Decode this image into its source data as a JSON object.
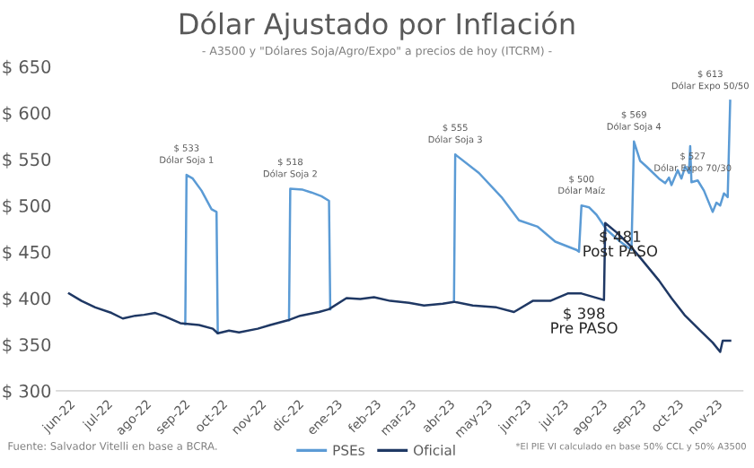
{
  "chart_data": {
    "type": "line",
    "title": "Dólar Ajustado por Inflación",
    "subtitle": "- A3500 y \"Dólares Soja/Agro/Expo\" a precios de hoy (ITCRM) -",
    "series": [
      {
        "name": "PSEs",
        "color": "#5b9bd5",
        "x": [
          "2022-09-02",
          "2022-09-03",
          "2022-09-08",
          "2022-09-15",
          "2022-09-23",
          "2022-09-27",
          "2022-09-28",
          "2022-10-15",
          "2022-11-24",
          "2022-11-25",
          "2022-12-05",
          "2022-12-12",
          "2022-12-20",
          "2022-12-26",
          "2022-12-27",
          "2023-02-01",
          "2023-04-05",
          "2023-04-06",
          "2023-04-25",
          "2023-05-13",
          "2023-05-27",
          "2023-06-11",
          "2023-06-25",
          "2023-07-12",
          "2023-07-14",
          "2023-07-16",
          "2023-07-22",
          "2023-07-28",
          "2023-08-05",
          "2023-08-16",
          "2023-08-25",
          "2023-08-27",
          "2023-09-01",
          "2023-09-06",
          "2023-09-16",
          "2023-09-21",
          "2023-09-24",
          "2023-09-26",
          "2023-10-01",
          "2023-10-04",
          "2023-10-07",
          "2023-10-10",
          "2023-10-11",
          "2023-10-12",
          "2023-10-17",
          "2023-10-22",
          "2023-10-29",
          "2023-11-01",
          "2023-11-04",
          "2023-11-07",
          "2023-11-10",
          "2023-11-12"
        ],
        "values": [
          372,
          533,
          529,
          516,
          496,
          493,
          362,
          null,
          376,
          518,
          517,
          514,
          510,
          505,
          388,
          null,
          396,
          555,
          535,
          509,
          484,
          477,
          461,
          452,
          450,
          500,
          498,
          490,
          474,
          461,
          452,
          569,
          548,
          542,
          529,
          524,
          530,
          522,
          538,
          529,
          542,
          535,
          564,
          525,
          527,
          516,
          493,
          503,
          500,
          513,
          509,
          613
        ]
      },
      {
        "name": "Oficial",
        "color": "#1f3864",
        "x": [
          "2022-06-01",
          "2022-06-11",
          "2022-06-22",
          "2022-07-05",
          "2022-07-14",
          "2022-07-24",
          "2022-07-31",
          "2022-08-09",
          "2022-08-17",
          "2022-08-29",
          "2022-09-13",
          "2022-09-24",
          "2022-09-28",
          "2022-10-07",
          "2022-10-15",
          "2022-10-30",
          "2022-11-09",
          "2022-11-23",
          "2022-12-03",
          "2022-12-18",
          "2022-12-26",
          "2023-01-09",
          "2023-01-20",
          "2023-01-31",
          "2023-02-13",
          "2023-02-28",
          "2023-03-12",
          "2023-03-27",
          "2023-04-05",
          "2023-04-20",
          "2023-05-09",
          "2023-05-23",
          "2023-06-07",
          "2023-06-21",
          "2023-07-05",
          "2023-07-16",
          "2023-08-03",
          "2023-08-04",
          "2023-08-13",
          "2023-08-23",
          "2023-09-02",
          "2023-09-16",
          "2023-09-26",
          "2023-10-07",
          "2023-10-19",
          "2023-10-29",
          "2023-11-04",
          "2023-11-06",
          "2023-11-12"
        ],
        "values": [
          405,
          397,
          390,
          384,
          378,
          381,
          382,
          384,
          380,
          373,
          371,
          367,
          362,
          365,
          363,
          367,
          371,
          376,
          381,
          385,
          388,
          400,
          399,
          401,
          397,
          395,
          392,
          394,
          396,
          392,
          390,
          385,
          397,
          397,
          405,
          405,
          398,
          481,
          471,
          458,
          442,
          419,
          400,
          381,
          365,
          352,
          342,
          354,
          354
        ]
      }
    ],
    "xlim": [
      "2022-05-22",
      "2023-11-22"
    ],
    "xticks": [
      {
        "value": "2022-06-01",
        "label": "jun-22"
      },
      {
        "value": "2022-07-01",
        "label": "jul-22"
      },
      {
        "value": "2022-08-01",
        "label": "ago-22"
      },
      {
        "value": "2022-09-01",
        "label": "sep-22"
      },
      {
        "value": "2022-10-01",
        "label": "oct-22"
      },
      {
        "value": "2022-11-01",
        "label": "nov-22"
      },
      {
        "value": "2022-12-01",
        "label": "dic-22"
      },
      {
        "value": "2023-01-01",
        "label": "ene-23"
      },
      {
        "value": "2023-02-01",
        "label": "feb-23"
      },
      {
        "value": "2023-03-01",
        "label": "mar-23"
      },
      {
        "value": "2023-04-01",
        "label": "abr-23"
      },
      {
        "value": "2023-05-01",
        "label": "may-23"
      },
      {
        "value": "2023-06-01",
        "label": "jun-23"
      },
      {
        "value": "2023-07-01",
        "label": "jul-23"
      },
      {
        "value": "2023-08-01",
        "label": "ago-23"
      },
      {
        "value": "2023-09-01",
        "label": "sep-23"
      },
      {
        "value": "2023-10-01",
        "label": "oct-23"
      },
      {
        "value": "2023-11-01",
        "label": "nov-23"
      }
    ],
    "ylim": [
      300,
      650
    ],
    "yticks": [
      {
        "value": 300,
        "label": "$ 300"
      },
      {
        "value": 350,
        "label": "$ 350"
      },
      {
        "value": 400,
        "label": "$ 400"
      },
      {
        "value": 450,
        "label": "$ 450"
      },
      {
        "value": 500,
        "label": "$ 500"
      },
      {
        "value": 550,
        "label": "$ 550"
      },
      {
        "value": 600,
        "label": "$ 600"
      },
      {
        "value": 650,
        "label": "$ 650"
      }
    ],
    "grid": false,
    "legend": "bottom",
    "annotations": [
      {
        "text": "$ 533\nDólar Soja 1",
        "x": "2022-09-03",
        "y": 533
      },
      {
        "text": "$ 518\nDólar Soja 2",
        "x": "2022-11-25",
        "y": 518
      },
      {
        "text": "$ 555\nDólar Soja 3",
        "x": "2023-04-06",
        "y": 555
      },
      {
        "text": "$ 500\nDólar Maíz",
        "x": "2023-07-16",
        "y": 500
      },
      {
        "text": "$ 569\nDólar Soja 4",
        "x": "2023-08-27",
        "y": 569
      },
      {
        "text": "$ 527\nDólar Expo 70/30",
        "x": "2023-10-17",
        "y": 527
      },
      {
        "text": "$ 613\nDólar Expo 50/50",
        "x": "2023-11-12",
        "y": 613
      },
      {
        "text": "$ 481\nPost PASO",
        "x": "2023-08-04",
        "y": 481
      },
      {
        "text": "$ 398\nPre PASO",
        "x": "2023-08-03",
        "y": 398
      },
      "Fuente: Salvador Vitelli en base a BCRA.",
      "*El PIE VI calculado en base 50% CCL y 50% A3500"
    ]
  }
}
